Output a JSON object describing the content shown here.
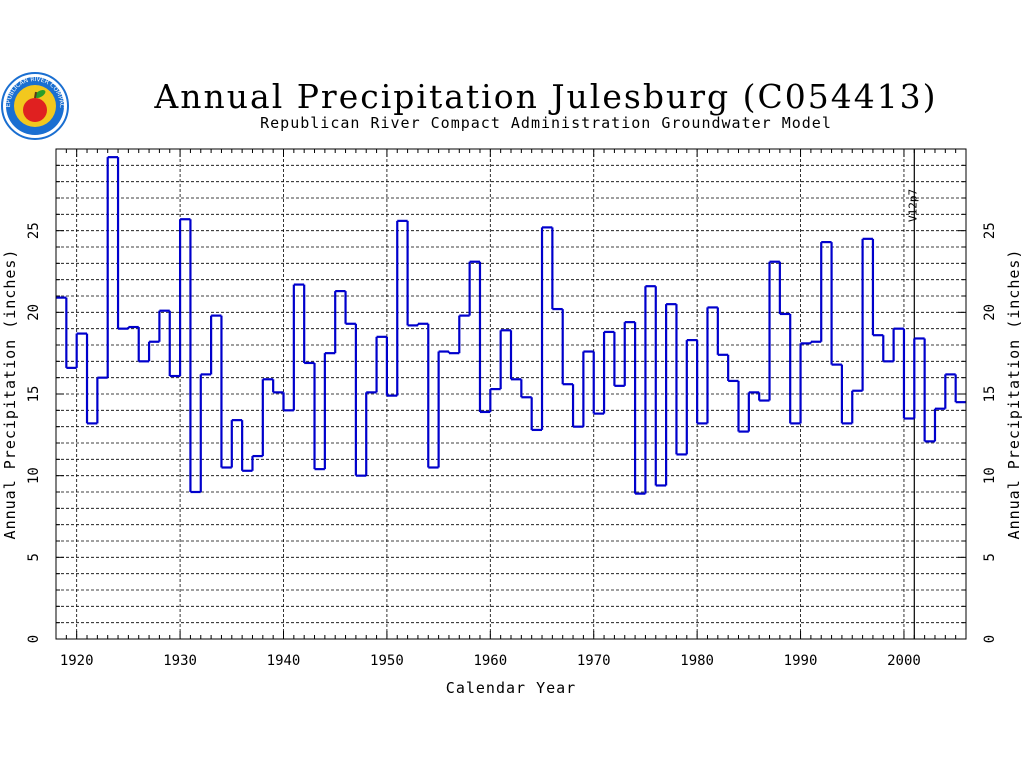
{
  "logo": {
    "icon": "apple-seal-logo",
    "text": "REPUBLICAN RIVER COMPACT"
  },
  "colors": {
    "series": "#0000cc",
    "axis": "#000000",
    "grid": "#000000",
    "logo_ring": "#1a6fd1",
    "logo_fill": "#f2c81e",
    "apple": "#e02020",
    "leaf": "#2a9d2a"
  },
  "chart_data": {
    "type": "line",
    "title": "Annual Precipitation Julesburg (C054413)",
    "subtitle": "Republican River Compact Administration Groundwater Model",
    "xlabel": "Calendar Year",
    "ylabel": "Annual Precipitation (inches)",
    "y2label": "Annual Precipitation (inches)",
    "xlim": [
      1918,
      2006
    ],
    "ylim": [
      0,
      30
    ],
    "x_ticks": [
      1920,
      1930,
      1940,
      1950,
      1960,
      1970,
      1980,
      1990,
      2000
    ],
    "y_ticks": [
      0,
      5,
      10,
      15,
      20,
      25
    ],
    "grid": true,
    "step": true,
    "marker": {
      "year": 2001,
      "label": "V12p7"
    },
    "series": [
      {
        "x": [
          1918,
          1919,
          1920,
          1921,
          1922,
          1923,
          1924,
          1925,
          1926,
          1927,
          1928,
          1929,
          1930,
          1931,
          1932,
          1933,
          1934,
          1935,
          1936,
          1937,
          1938,
          1939,
          1940,
          1941,
          1942,
          1943,
          1944,
          1945,
          1946,
          1947,
          1948,
          1949,
          1950,
          1951,
          1952,
          1953,
          1954,
          1955,
          1956,
          1957,
          1958,
          1959,
          1960,
          1961,
          1962,
          1963,
          1964,
          1965,
          1966,
          1967,
          1968,
          1969,
          1970,
          1971,
          1972,
          1973,
          1974,
          1975,
          1976,
          1977,
          1978,
          1979,
          1980,
          1981,
          1982,
          1983,
          1984,
          1985,
          1986,
          1987,
          1988,
          1989,
          1990,
          1991,
          1992,
          1993,
          1994,
          1995,
          1996,
          1997,
          1998,
          1999,
          2000,
          2001,
          2002,
          2003,
          2004,
          2005
        ],
        "values": [
          20.9,
          16.6,
          18.7,
          13.2,
          16.0,
          29.5,
          19.0,
          19.1,
          17.0,
          18.2,
          20.1,
          16.1,
          25.7,
          9.0,
          16.2,
          19.8,
          10.5,
          13.4,
          10.3,
          11.2,
          15.9,
          15.1,
          14.0,
          21.7,
          16.9,
          10.4,
          17.5,
          21.3,
          19.3,
          10.0,
          15.1,
          18.5,
          14.9,
          25.6,
          19.2,
          19.3,
          10.5,
          17.6,
          17.5,
          19.8,
          23.1,
          13.9,
          15.3,
          18.9,
          15.9,
          14.8,
          12.8,
          25.2,
          20.2,
          15.6,
          13.0,
          17.6,
          13.8,
          18.8,
          15.5,
          19.4,
          8.9,
          21.6,
          9.4,
          20.5,
          11.3,
          18.3,
          13.2,
          20.3,
          17.4,
          15.8,
          12.7,
          15.1,
          14.6,
          23.1,
          19.9,
          13.2,
          18.1,
          18.2,
          24.3,
          16.8,
          13.2,
          15.2,
          24.5,
          18.6,
          17.0,
          19.0,
          13.5,
          18.4,
          12.1,
          14.1,
          16.2,
          14.5
        ]
      }
    ]
  }
}
